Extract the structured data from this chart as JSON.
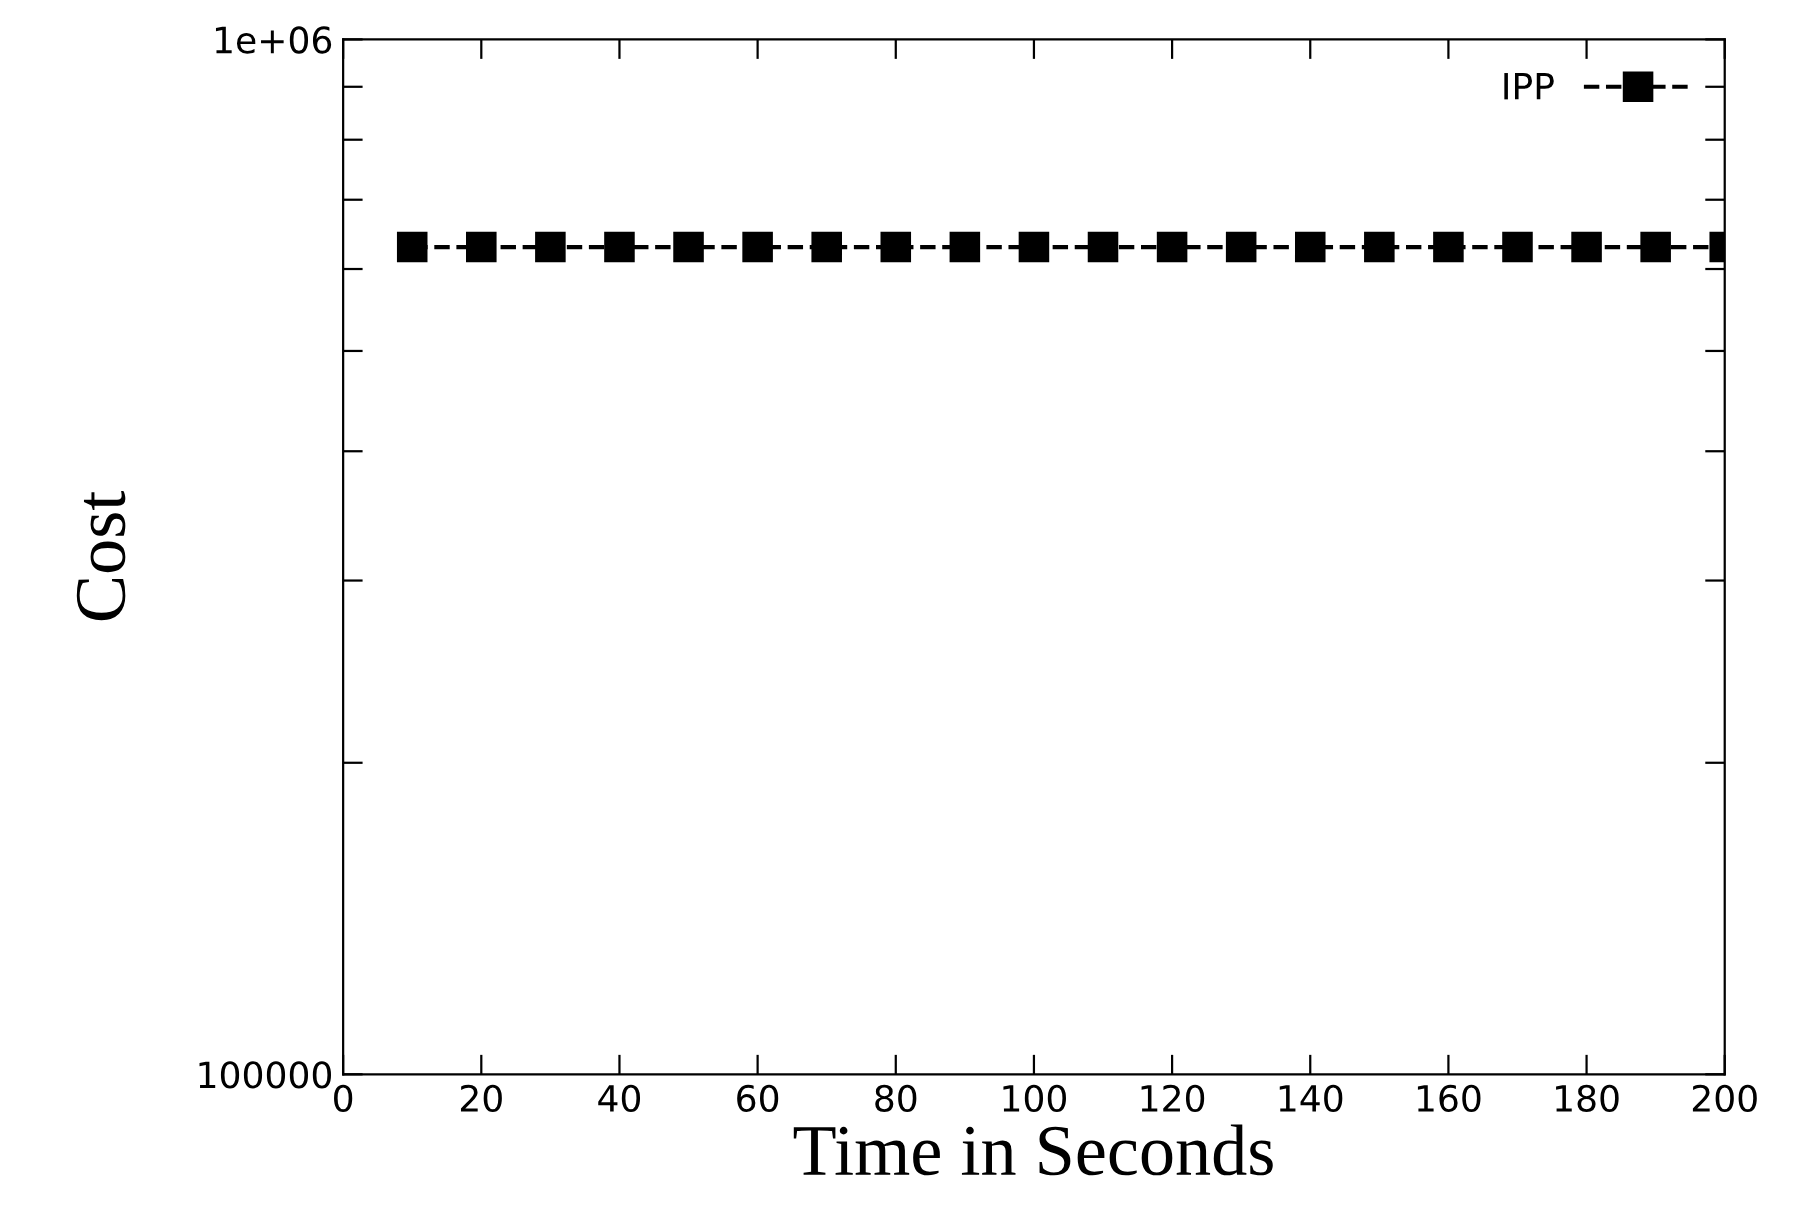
{
  "chart_data": {
    "type": "line",
    "xlabel": "Time in Seconds",
    "ylabel": "Cost",
    "x": [
      10,
      20,
      30,
      40,
      50,
      60,
      70,
      80,
      90,
      100,
      110,
      120,
      130,
      140,
      150,
      160,
      170,
      180,
      190,
      200
    ],
    "series": [
      {
        "name": "IPP",
        "color": "#000000",
        "values": [
          630000,
          630000,
          630000,
          630000,
          630000,
          630000,
          630000,
          630000,
          630000,
          630000,
          630000,
          630000,
          630000,
          630000,
          630000,
          630000,
          630000,
          630000,
          630000,
          630000
        ]
      }
    ],
    "xlim": [
      0,
      200
    ],
    "xticks": [
      0,
      20,
      40,
      60,
      80,
      100,
      120,
      140,
      160,
      180,
      200
    ],
    "ylim": [
      100000,
      1000000
    ],
    "yticks": [
      {
        "value": 100000,
        "label": "100000"
      },
      {
        "value": 200000,
        "label": null
      },
      {
        "value": 300000,
        "label": null
      },
      {
        "value": 400000,
        "label": null
      },
      {
        "value": 500000,
        "label": null
      },
      {
        "value": 600000,
        "label": null
      },
      {
        "value": 700000,
        "label": null
      },
      {
        "value": 800000,
        "label": null
      },
      {
        "value": 900000,
        "label": null
      },
      {
        "value": 1000000,
        "label": "1e+06"
      }
    ],
    "log": "y",
    "grid": false,
    "legend": "top right",
    "marker": "square",
    "line_style": "dashed"
  }
}
